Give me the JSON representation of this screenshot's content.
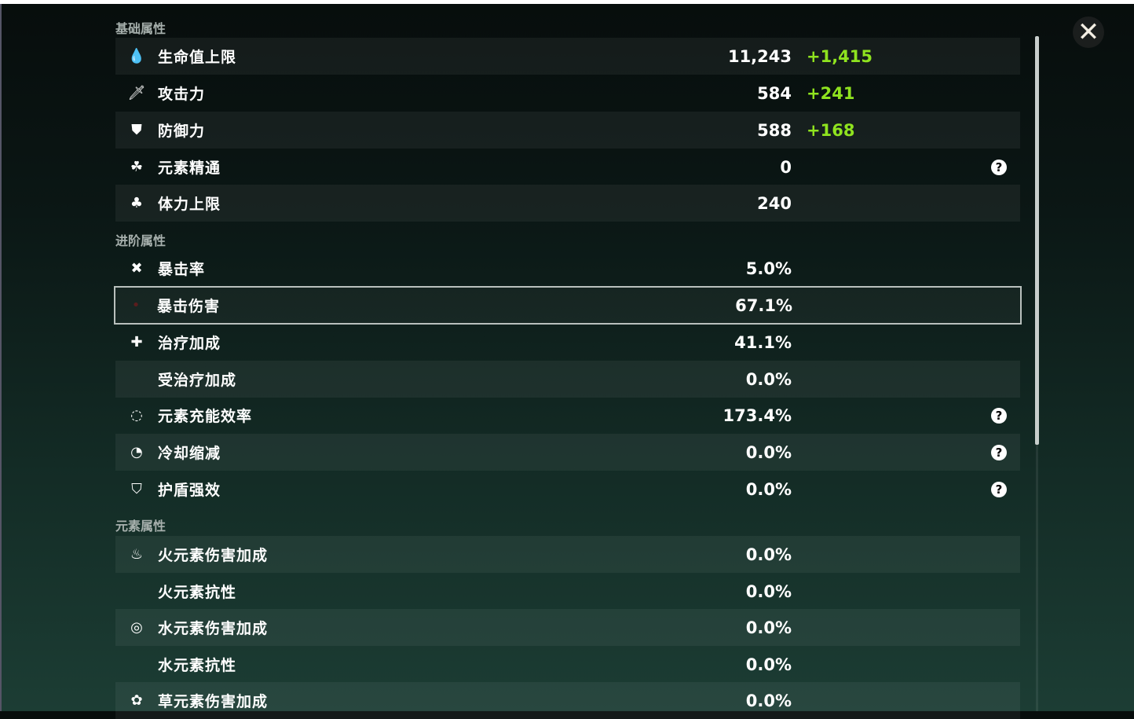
{
  "sections": {
    "base": "基础属性",
    "advanced": "进阶属性",
    "element": "元素属性"
  },
  "rows": [
    {
      "icon": "hp-drop-icon",
      "label": "生命值上限",
      "value": "11,243",
      "bonus": "+1,415"
    },
    {
      "icon": "sword-icon",
      "label": "攻击力",
      "value": "584",
      "bonus": "+241"
    },
    {
      "icon": "shield-icon",
      "label": "防御力",
      "value": "588",
      "bonus": "+168"
    },
    {
      "icon": "elemental-mastery-icon",
      "label": "元素精通",
      "value": "0",
      "help": true
    },
    {
      "icon": "stamina-icon",
      "label": "体力上限",
      "value": "240"
    },
    {
      "icon": "crit-rate-icon",
      "label": "暴击率",
      "value": "5.0%"
    },
    {
      "icon": "crit-dmg-icon",
      "label": "暴击伤害",
      "value": "67.1%",
      "selected": true
    },
    {
      "icon": "healing-cross-icon",
      "label": "治疗加成",
      "value": "41.1%"
    },
    {
      "label": "受治疗加成",
      "value": "0.0%"
    },
    {
      "icon": "energy-recharge-icon",
      "label": "元素充能效率",
      "value": "173.4%",
      "help": true
    },
    {
      "icon": "cooldown-icon",
      "label": "冷却缩减",
      "value": "0.0%",
      "help": true
    },
    {
      "icon": "shield-strength-icon",
      "label": "护盾强效",
      "value": "0.0%",
      "help": true
    },
    {
      "icon": "pyro-icon",
      "label": "火元素伤害加成",
      "value": "0.0%"
    },
    {
      "label": "火元素抗性",
      "value": "0.0%"
    },
    {
      "icon": "hydro-icon",
      "label": "水元素伤害加成",
      "value": "0.0%"
    },
    {
      "label": "水元素抗性",
      "value": "0.0%"
    },
    {
      "icon": "dendro-icon",
      "label": "草元素伤害加成",
      "value": "0.0%"
    }
  ],
  "help_glyph": "?",
  "close_glyph": "✕",
  "colors": {
    "bonus": "#8fe31f",
    "background": "#0b1715"
  }
}
